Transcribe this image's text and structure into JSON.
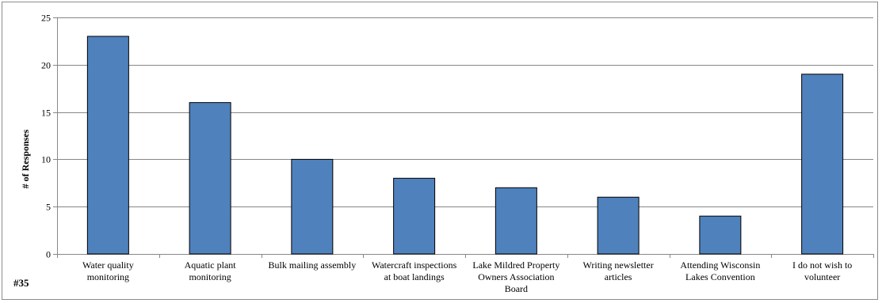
{
  "figure_number": "#35",
  "chart_data": {
    "type": "bar",
    "title": "",
    "xlabel": "",
    "ylabel": "# of Responses",
    "ylim": [
      0,
      25
    ],
    "yticks": [
      0,
      5,
      10,
      15,
      20,
      25
    ],
    "grid": "horizontal",
    "legend": "none",
    "bar_color": "#4f81bd",
    "bar_border_color": "#000000",
    "categories": [
      [
        "Water quality",
        "monitoring"
      ],
      [
        "Aquatic plant",
        "monitoring"
      ],
      [
        "Bulk mailing assembly"
      ],
      [
        "Watercraft inspections",
        "at boat landings"
      ],
      [
        "Lake Mildred Property",
        "Owners Association",
        "Board"
      ],
      [
        "Writing newsletter",
        "articles"
      ],
      [
        "Attending Wisconsin",
        "Lakes Convention"
      ],
      [
        "I do not wish to",
        "volunteer"
      ]
    ],
    "values": [
      23,
      16,
      10,
      8,
      7,
      6,
      4,
      19
    ]
  }
}
